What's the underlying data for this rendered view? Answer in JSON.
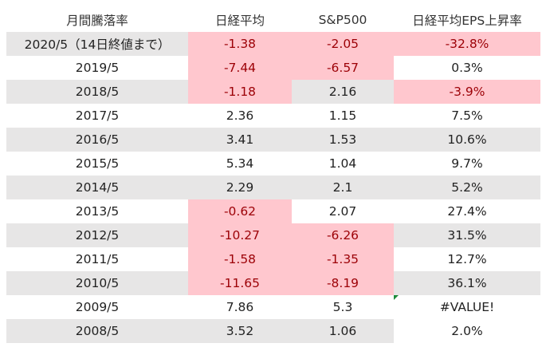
{
  "headers": [
    "月間騰落率",
    "日経平均",
    "S&P500",
    "日経平均EPS上昇率"
  ],
  "rows": [
    {
      "period": "2020/5（14日終値まで）",
      "nikkei": "-1.38",
      "sp500": "-2.05",
      "eps": "-32.8%"
    },
    {
      "period": "2019/5",
      "nikkei": "-7.44",
      "sp500": "-6.57",
      "eps": "0.3%"
    },
    {
      "period": "2018/5",
      "nikkei": "-1.18",
      "sp500": "2.16",
      "eps": "-3.9%"
    },
    {
      "period": "2017/5",
      "nikkei": "2.36",
      "sp500": "1.15",
      "eps": "7.5%"
    },
    {
      "period": "2016/5",
      "nikkei": "3.41",
      "sp500": "1.53",
      "eps": "10.6%"
    },
    {
      "period": "2015/5",
      "nikkei": "5.34",
      "sp500": "1.04",
      "eps": "9.7%"
    },
    {
      "period": "2014/5",
      "nikkei": "2.29",
      "sp500": "2.1",
      "eps": "5.2%"
    },
    {
      "period": "2013/5",
      "nikkei": "-0.62",
      "sp500": "2.07",
      "eps": "27.4%"
    },
    {
      "period": "2012/5",
      "nikkei": "-10.27",
      "sp500": "-6.26",
      "eps": "31.5%"
    },
    {
      "period": "2011/5",
      "nikkei": "-1.58",
      "sp500": "-1.35",
      "eps": "12.7%"
    },
    {
      "period": "2010/5",
      "nikkei": "-11.65",
      "sp500": "-8.19",
      "eps": "36.1%"
    },
    {
      "period": "2009/5",
      "nikkei": "7.86",
      "sp500": "5.3",
      "eps": "#VALUE!"
    },
    {
      "period": "2008/5",
      "nikkei": "3.52",
      "sp500": "1.06",
      "eps": "2.0%"
    }
  ],
  "colors": {
    "negative_fill": "#ffc7ce",
    "negative_text": "#9c0006",
    "band_fill": "#e7e6e6",
    "error_indicator": "#1e8b3a"
  }
}
